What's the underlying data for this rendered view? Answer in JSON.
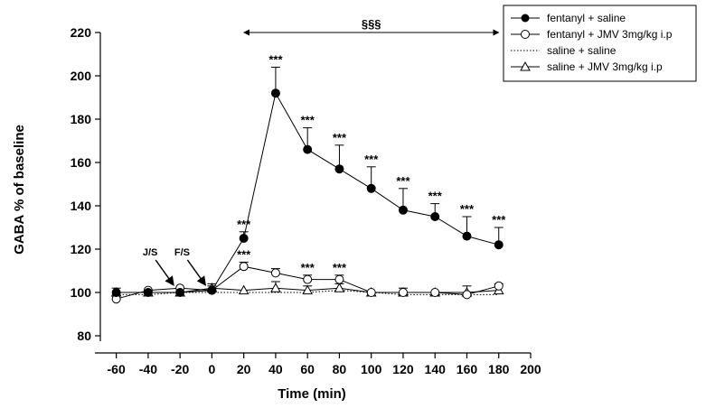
{
  "chart_data": {
    "type": "line",
    "xlabel": "Time (min)",
    "ylabel": "GABA % of baseline",
    "xlim": [
      -70,
      200
    ],
    "ylim": [
      80,
      220
    ],
    "xticks": [
      -60,
      -40,
      -20,
      0,
      20,
      40,
      60,
      80,
      100,
      120,
      140,
      160,
      180,
      200
    ],
    "yticks": [
      80,
      100,
      120,
      140,
      160,
      180,
      200,
      220
    ],
    "x": [
      -60,
      -40,
      -20,
      0,
      20,
      40,
      60,
      80,
      100,
      120,
      140,
      160,
      180
    ],
    "grid": false,
    "legend_position": "top-right",
    "series": [
      {
        "name": "fentanyl + saline",
        "marker": "filled-circle",
        "line": "solid",
        "values": [
          100,
          100,
          100,
          101,
          125,
          192,
          166,
          157,
          148,
          138,
          135,
          126,
          122
        ],
        "errors": [
          0,
          0,
          0,
          2,
          3,
          12,
          10,
          11,
          10,
          10,
          6,
          9,
          8
        ]
      },
      {
        "name": "fentanyl + JMV 3mg/kg i.p",
        "marker": "open-circle",
        "line": "solid",
        "values": [
          97,
          101,
          102,
          101,
          112,
          109,
          106,
          106,
          100,
          100,
          100,
          99,
          103
        ],
        "errors": [
          0,
          0,
          0,
          0,
          2,
          2,
          2,
          2,
          0,
          0,
          0,
          0,
          0
        ]
      },
      {
        "name": "saline + saline",
        "marker": "none",
        "line": "dotted",
        "values": [
          99,
          99,
          100,
          100,
          100,
          100,
          100,
          101,
          100,
          99,
          99,
          99,
          99
        ],
        "errors": [
          0,
          0,
          0,
          0,
          0,
          0,
          0,
          0,
          0,
          0,
          0,
          0,
          0
        ]
      },
      {
        "name": "saline + JMV 3mg/kg i.p",
        "marker": "open-triangle",
        "line": "solid",
        "values": [
          100,
          100,
          100,
          102,
          101,
          102,
          101,
          102,
          100,
          100,
          100,
          100,
          101
        ],
        "errors": [
          2,
          0,
          0,
          2,
          0,
          3,
          2,
          2,
          0,
          2,
          0,
          3,
          3
        ]
      }
    ],
    "significance": [
      {
        "series": 0,
        "x": 20,
        "label": "***"
      },
      {
        "series": 0,
        "x": 40,
        "label": "***"
      },
      {
        "series": 0,
        "x": 60,
        "label": "***"
      },
      {
        "series": 0,
        "x": 80,
        "label": "***"
      },
      {
        "series": 0,
        "x": 100,
        "label": "***"
      },
      {
        "series": 0,
        "x": 120,
        "label": "***"
      },
      {
        "series": 0,
        "x": 140,
        "label": "***"
      },
      {
        "series": 0,
        "x": 160,
        "label": "***"
      },
      {
        "series": 0,
        "x": 180,
        "label": "***"
      },
      {
        "series": 1,
        "x": 20,
        "label": "***"
      },
      {
        "series": 1,
        "x": 60,
        "label": "***"
      },
      {
        "series": 1,
        "x": 80,
        "label": "***"
      }
    ],
    "bracket": {
      "label": "§§§",
      "from": 20,
      "to": 180
    },
    "injection_arrows": [
      {
        "label": "J/S",
        "x": -20,
        "y": 100
      },
      {
        "label": "F/S",
        "x": 0,
        "y": 100
      }
    ]
  }
}
